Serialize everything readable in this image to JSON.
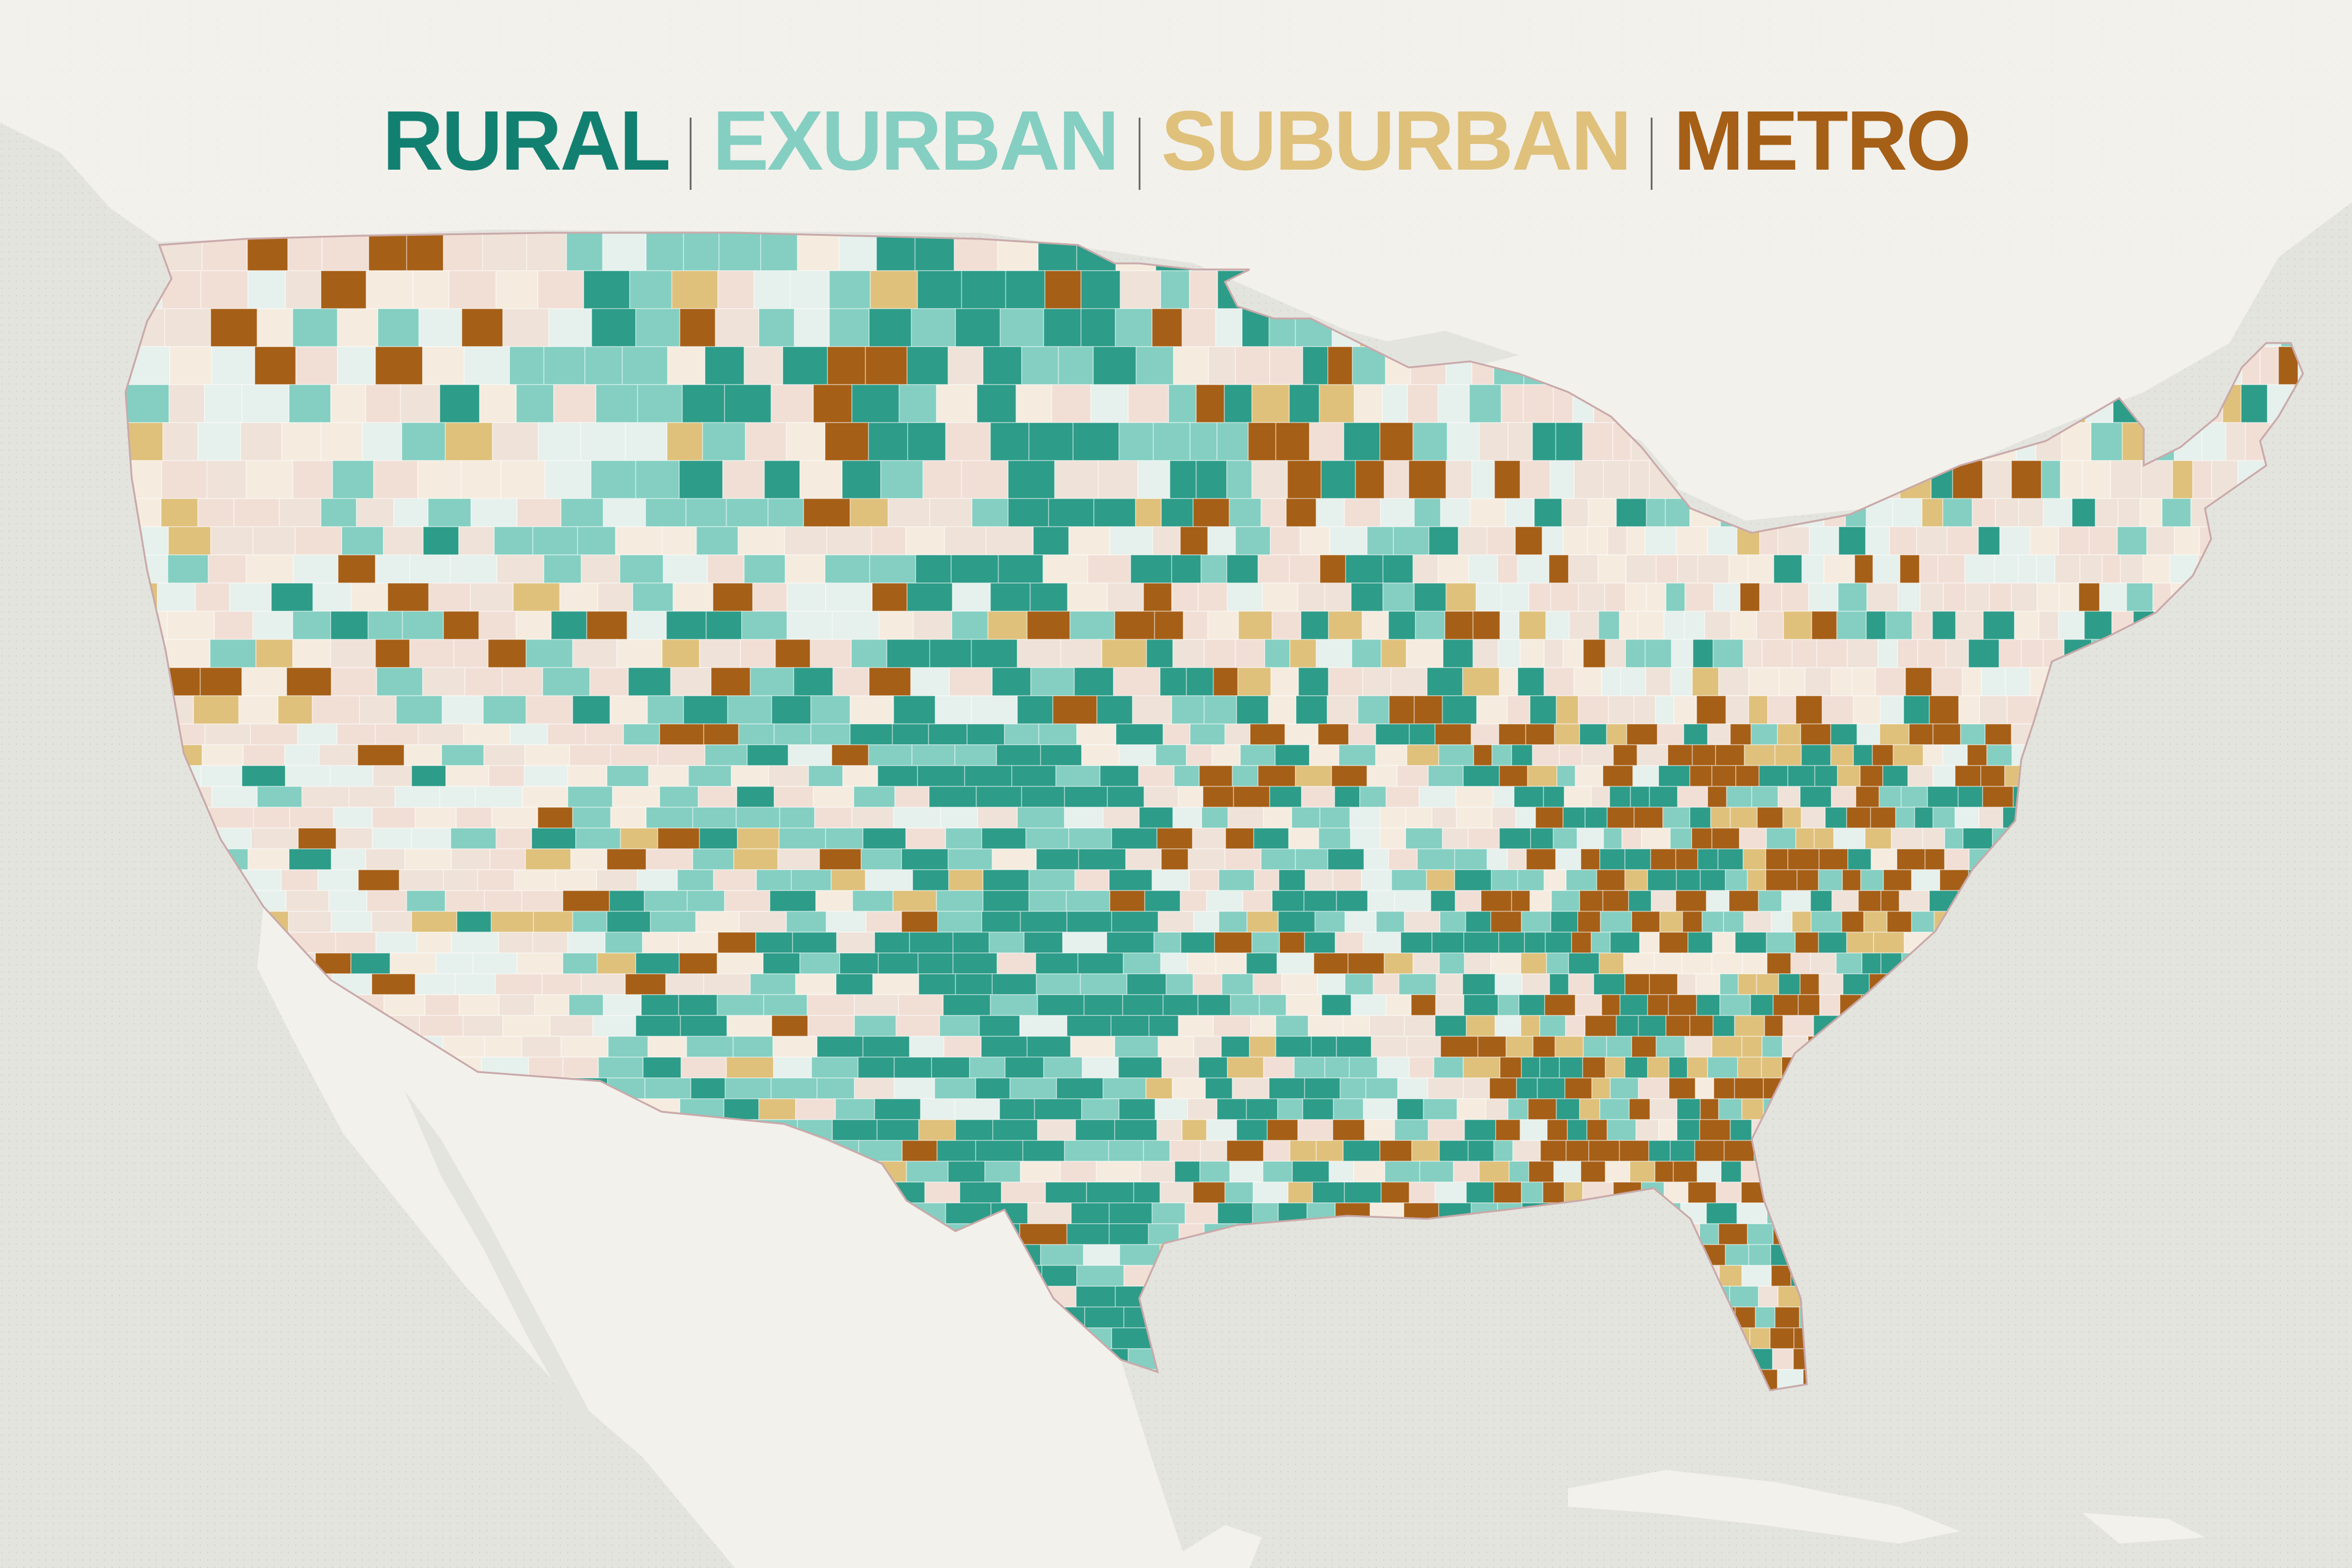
{
  "legend": {
    "categories": [
      {
        "label": "RURAL",
        "color": "#128071"
      },
      {
        "label": "EXURBAN",
        "color": "#84cfc2"
      },
      {
        "label": "SUBURBAN",
        "color": "#dfc17c"
      },
      {
        "label": "METRO",
        "color": "#a65f17"
      }
    ]
  },
  "map": {
    "background": "#e4e4df",
    "land_color": "#f3f1ec",
    "unclassified_fill": "#f1dfd6",
    "rural_fill": "#2d9c89",
    "exurban_fill": "#84cfc2",
    "suburban_fill": "#dfc17c",
    "metro_fill": "#a65f17"
  }
}
